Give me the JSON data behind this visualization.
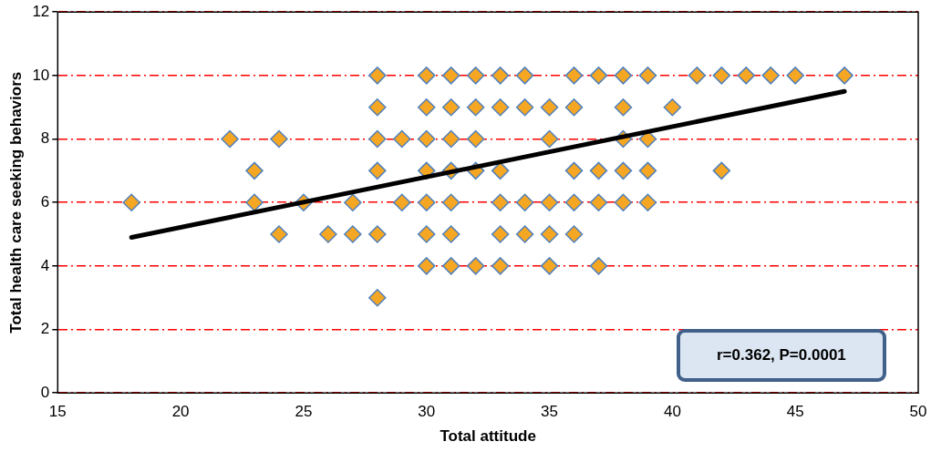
{
  "chart_data": {
    "type": "scatter",
    "xlabel": "Total attitude",
    "ylabel": "Total health care seeking behaviors",
    "xlim": [
      15,
      50
    ],
    "xticks": [
      15,
      20,
      25,
      30,
      35,
      40,
      45,
      50
    ],
    "ylim": [
      0,
      12
    ],
    "yticks": [
      0,
      2,
      4,
      6,
      8,
      10,
      12
    ],
    "grid": "y",
    "legend": false,
    "marker": "diamond",
    "series": [
      {
        "color": "#f5a623",
        "x": [
          18,
          22,
          23,
          23,
          24,
          24,
          25,
          26,
          27,
          27,
          28,
          28,
          28,
          28,
          28,
          28,
          29,
          29,
          30,
          30,
          30,
          30,
          30,
          30,
          30,
          31,
          31,
          31,
          31,
          31,
          31,
          31,
          32,
          32,
          32,
          32,
          32,
          33,
          33,
          33,
          33,
          33,
          33,
          34,
          34,
          34,
          34,
          35,
          35,
          35,
          35,
          35,
          36,
          36,
          36,
          36,
          36,
          37,
          37,
          37,
          37,
          38,
          38,
          38,
          38,
          38,
          39,
          39,
          39,
          39,
          40,
          41,
          42,
          42,
          43,
          44,
          45,
          47
        ],
        "values": [
          6,
          8,
          7,
          6,
          8,
          5,
          6,
          5,
          6,
          5,
          10,
          9,
          8,
          7,
          5,
          3,
          8,
          6,
          10,
          9,
          8,
          7,
          6,
          5,
          4,
          10,
          9,
          8,
          7,
          6,
          5,
          4,
          10,
          9,
          8,
          7,
          4,
          10,
          9,
          7,
          6,
          5,
          4,
          10,
          9,
          6,
          5,
          9,
          8,
          6,
          5,
          4,
          10,
          9,
          7,
          6,
          5,
          10,
          7,
          6,
          4,
          10,
          9,
          8,
          7,
          6,
          10,
          8,
          7,
          6,
          9,
          10,
          10,
          7,
          10,
          10,
          10,
          10
        ]
      },
      {
        "type": "line",
        "color": "#000000",
        "marker": "none",
        "x": [
          18,
          47
        ],
        "values": [
          4.9,
          9.5
        ]
      }
    ],
    "annotations": [
      "r=0.362, P=0.0001"
    ]
  }
}
